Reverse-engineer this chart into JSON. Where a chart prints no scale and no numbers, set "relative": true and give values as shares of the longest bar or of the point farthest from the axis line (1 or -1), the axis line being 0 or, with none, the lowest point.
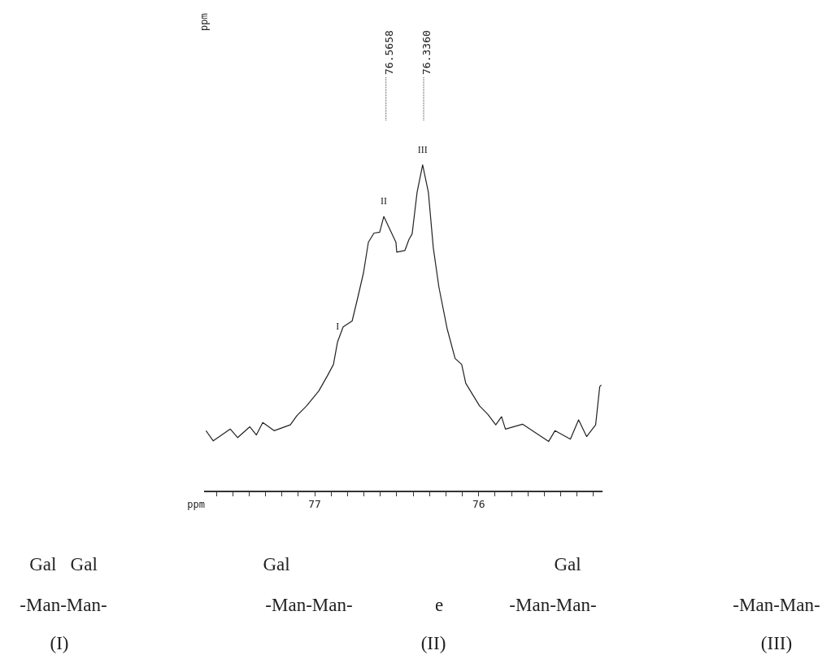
{
  "chart_data": {
    "type": "line",
    "relative": true,
    "xlabel": "ppm",
    "xlim": [
      77.67,
      75.25
    ],
    "xticks": [
      {
        "value": 77.6,
        "label": null
      },
      {
        "value": 77.5,
        "label": null
      },
      {
        "value": 77.4,
        "label": null
      },
      {
        "value": 77.3,
        "label": null
      },
      {
        "value": 77.2,
        "label": null
      },
      {
        "value": 77.1,
        "label": null
      },
      77,
      {
        "value": 76.9,
        "label": null
      },
      {
        "value": 76.8,
        "label": null
      },
      {
        "value": 76.7,
        "label": null
      },
      {
        "value": 76.6,
        "label": null
      },
      {
        "value": 76.5,
        "label": null
      },
      {
        "value": 76.4,
        "label": null
      },
      {
        "value": 76.3,
        "label": null
      },
      {
        "value": 76.2,
        "label": null
      },
      {
        "value": 76.1,
        "label": null
      },
      76,
      {
        "value": 75.9,
        "label": null
      },
      {
        "value": 75.8,
        "label": null
      },
      {
        "value": 75.7,
        "label": null
      },
      {
        "value": 75.6,
        "label": null
      },
      {
        "value": 75.5,
        "label": null
      },
      {
        "value": 75.4,
        "label": null
      },
      {
        "value": 75.3,
        "label": null
      }
    ],
    "grid": false,
    "legend": false,
    "marker": "none",
    "line_style": "solid",
    "series": [
      {
        "color": "#222222",
        "x": [
          77.663,
          77.619,
          77.515,
          77.47,
          77.396,
          77.356,
          77.317,
          77.248,
          77.149,
          77.109,
          77.05,
          76.975,
          76.921,
          76.886,
          76.861,
          76.827,
          76.772,
          76.738,
          76.703,
          76.673,
          76.639,
          76.604,
          76.579,
          76.505,
          76.5,
          76.45,
          76.426,
          76.406,
          76.376,
          76.342,
          76.307,
          76.277,
          76.243,
          76.193,
          76.144,
          76.104,
          76.079,
          75.995,
          75.946,
          75.896,
          75.861,
          75.837,
          75.733,
          75.649,
          75.574,
          75.535,
          75.441,
          75.391,
          75.342,
          75.287,
          75.262,
          75.252
        ],
        "values": [
          0.186,
          0.155,
          0.191,
          0.165,
          0.198,
          0.173,
          0.211,
          0.186,
          0.204,
          0.232,
          0.262,
          0.308,
          0.356,
          0.389,
          0.458,
          0.504,
          0.522,
          0.593,
          0.669,
          0.763,
          0.791,
          0.794,
          0.842,
          0.763,
          0.733,
          0.738,
          0.771,
          0.789,
          0.916,
          1.0,
          0.916,
          0.746,
          0.626,
          0.499,
          0.407,
          0.389,
          0.331,
          0.262,
          0.237,
          0.204,
          0.229,
          0.191,
          0.206,
          0.178,
          0.153,
          0.186,
          0.16,
          0.219,
          0.168,
          0.204,
          0.321,
          0.326
        ]
      }
    ],
    "annotations": [
      {
        "text": "76.5658",
        "x": 76.5658
      },
      {
        "text": "76.3360",
        "x": 76.336
      },
      {
        "text": "I",
        "x": 76.861,
        "y": 0.458
      },
      {
        "text": "II",
        "x": 76.579,
        "y": 0.842
      },
      {
        "text": "III",
        "x": 76.342,
        "y": 1.0
      },
      "ppm",
      "Gal   Gal",
      "-Man-Man-",
      "(I)",
      "Gal",
      "-Man-Man-",
      "e",
      "(II)",
      "Gal",
      "-Man-Man-",
      "-Man-Man-",
      "(III)"
    ]
  }
}
